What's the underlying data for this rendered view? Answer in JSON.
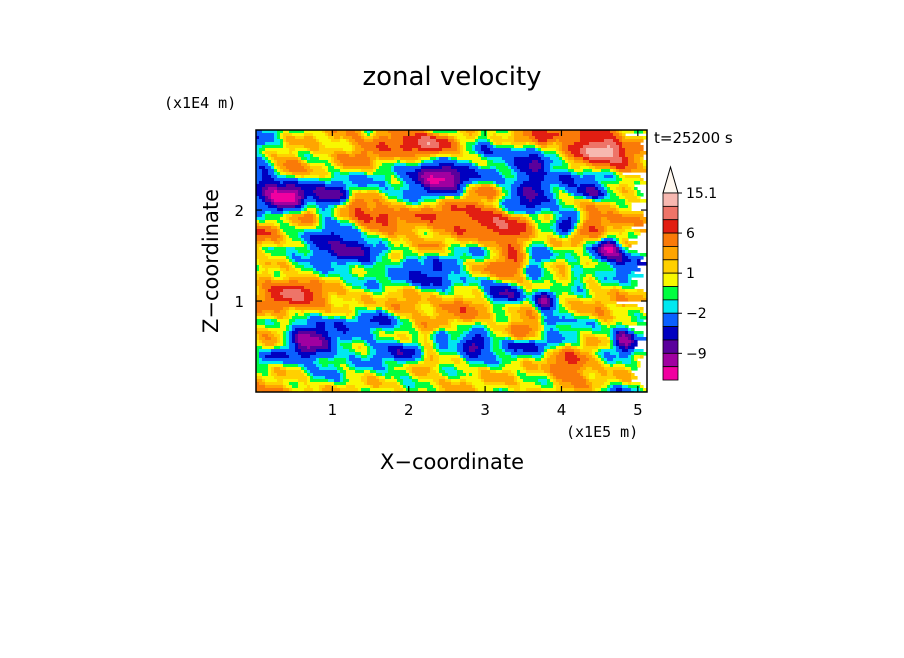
{
  "chart_data": {
    "type": "heatmap",
    "title": "zonal velocity",
    "time_label": "t=25200 s",
    "xlabel": "X−coordinate",
    "ylabel": "Z−coordinate",
    "x_unit": "(x1E5 m)",
    "y_unit": "(x1E4 m)",
    "xlim": [
      0,
      5.12
    ],
    "ylim": [
      0,
      2.88
    ],
    "x_ticks": [
      1,
      2,
      3,
      4,
      5
    ],
    "y_ticks": [
      1,
      2
    ],
    "colorbar": {
      "labels": [
        "15.1",
        "6",
        "1",
        "−2",
        "−9"
      ],
      "levels": [
        {
          "range": "> 15.1",
          "color": "#fff8f0"
        },
        {
          "range": "12.1 to 15.1",
          "color": "#f7b8b0"
        },
        {
          "range": "9.1 to 12.1",
          "color": "#ee7468"
        },
        {
          "range": "6 to 9.1",
          "color": "#e21e12"
        },
        {
          "range": "3.5 to 6",
          "color": "#fa7a08"
        },
        {
          "range": "2 to 3.5",
          "color": "#ffa500"
        },
        {
          "range": "1 to 2",
          "color": "#ffd000"
        },
        {
          "range": "0 to 1",
          "color": "#f8f800"
        },
        {
          "range": "-1 to 0",
          "color": "#00ff40"
        },
        {
          "range": "-2 to -1",
          "color": "#00e8f0"
        },
        {
          "range": "-4.3 to -2",
          "color": "#0a60ff"
        },
        {
          "range": "-6.6 to -4.3",
          "color": "#0000c0"
        },
        {
          "range": "-9 to -6.6",
          "color": "#5a009c"
        },
        {
          "range": "-11.5 to -9",
          "color": "#a000a0"
        },
        {
          "range": "< -11.5",
          "color": "#f000a0"
        }
      ]
    },
    "field_description": "horizontal banded wave pattern: positive (yellow-orange) bands around z=0.8-1.3 and z=1.8-2.6, negative (cyan-blue) tongues near z=2.2 left and tilted streaks on the right"
  }
}
